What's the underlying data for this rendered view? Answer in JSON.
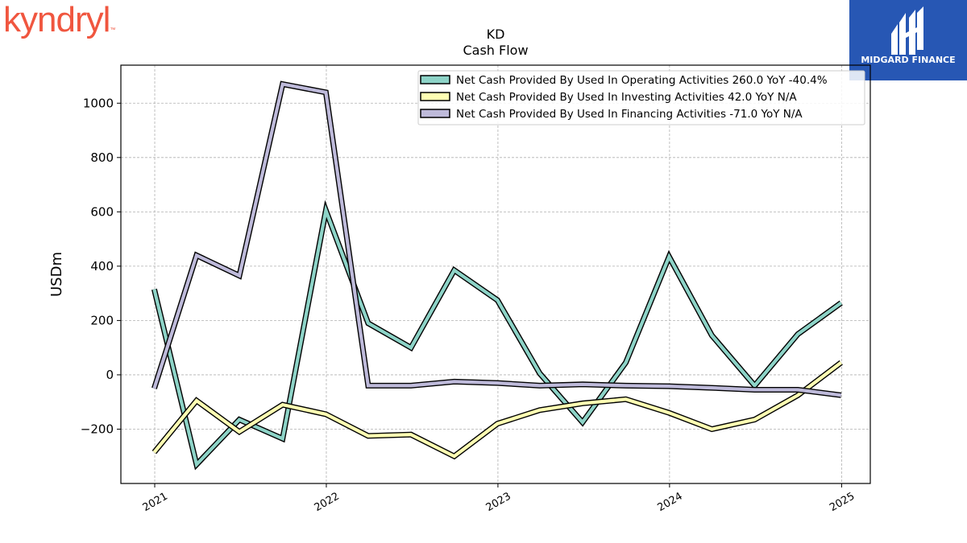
{
  "logos": {
    "left": {
      "text": "kyndryl",
      "mark": "™",
      "color": "#f0563f"
    },
    "right": {
      "text": "MIDGARD FINANCE",
      "background": "#2757b4"
    }
  },
  "chart_data": {
    "type": "line",
    "title": "KD",
    "subtitle": "Cash Flow",
    "xlabel": "",
    "ylabel": "USDm",
    "xlim": [
      "2020-10-21",
      "2025-03-03"
    ],
    "ylim": [
      -400,
      1140
    ],
    "x_ticks": [
      "2021",
      "2022",
      "2023",
      "2024",
      "2025"
    ],
    "y_ticks": [
      -200,
      0,
      200,
      400,
      600,
      800,
      1000
    ],
    "y_tick_labels": [
      "−200",
      "0",
      "200",
      "400",
      "600",
      "800",
      "1000"
    ],
    "grid": true,
    "legend_position": "top-right",
    "x": [
      "2020-12-31",
      "2021-03-31",
      "2021-06-30",
      "2021-09-30",
      "2021-12-31",
      "2022-03-31",
      "2022-06-30",
      "2022-09-30",
      "2022-12-31",
      "2023-03-31",
      "2023-06-30",
      "2023-09-30",
      "2023-12-31",
      "2024-03-31",
      "2024-06-30",
      "2024-09-30",
      "2024-12-31"
    ],
    "series": [
      {
        "name": "Net Cash Provided By Used In Operating Activities  260.0 YoY -40.4%",
        "color": "#8dd3c7",
        "values": [
          315,
          -330,
          -165,
          -235,
          605,
          190,
          100,
          385,
          275,
          5,
          -175,
          45,
          435,
          145,
          -40,
          150,
          265
        ]
      },
      {
        "name": "Net Cash Provided By Used In Investing Activities  42.0 YoY N/A",
        "color": "#ffffb3",
        "values": [
          -285,
          -95,
          -210,
          -110,
          -145,
          -225,
          -220,
          -300,
          -180,
          -130,
          -105,
          -90,
          -140,
          -200,
          -165,
          -75,
          45
        ]
      },
      {
        "name": "Net Cash Provided By Used In Financing Activities  -71.0 YoY N/A",
        "color": "#bebada",
        "values": [
          -50,
          440,
          365,
          1070,
          1040,
          -40,
          -40,
          -25,
          -30,
          -40,
          -35,
          -40,
          -42,
          -48,
          -55,
          -55,
          -75
        ]
      }
    ]
  }
}
